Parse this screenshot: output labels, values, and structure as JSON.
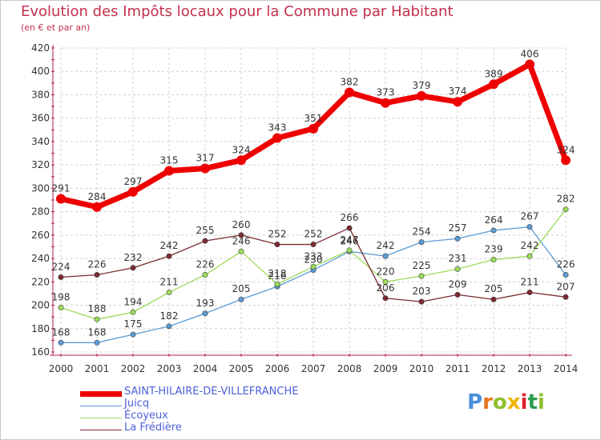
{
  "header": {
    "title": "Evolution des Impôts locaux pour la Commune par Habitant",
    "subtitle": "(en € et par an)"
  },
  "logo": {
    "letters": [
      "P",
      "r",
      "o",
      "x",
      "i",
      "t",
      "i"
    ],
    "colors": [
      "#4a90d9",
      "#e8741d",
      "#8fbf2e",
      "#f2b200",
      "#d9242a",
      "#2b9b4c",
      "#8fbf2e"
    ]
  },
  "colors": {
    "title": "#c2304c",
    "axis": "#b02040",
    "grid": "#d0d0d0",
    "legend_text": "#4b5fd9"
  },
  "chart_data": {
    "type": "line",
    "title": "Evolution des Impôts locaux pour la Commune par Habitant",
    "subtitle": "(en € et par an)",
    "xlabel": "",
    "ylabel": "",
    "x": [
      2000,
      2001,
      2002,
      2003,
      2004,
      2005,
      2006,
      2007,
      2008,
      2009,
      2010,
      2011,
      2012,
      2013,
      2014
    ],
    "ylim": [
      160,
      420
    ],
    "yticks": [
      160,
      180,
      200,
      220,
      240,
      260,
      280,
      300,
      320,
      340,
      360,
      380,
      400,
      420
    ],
    "grid": true,
    "legend_position": "bottom",
    "series": [
      {
        "name": "SAINT-HILAIRE-DE-VILLEFRANCHE",
        "color": "#ee0000",
        "thick": true,
        "values": [
          291,
          284,
          297,
          315,
          317,
          324,
          343,
          351,
          382,
          373,
          379,
          374,
          389,
          406,
          324
        ]
      },
      {
        "name": "Juicq",
        "color": "#5b9bd5",
        "thick": false,
        "values": [
          168,
          168,
          175,
          182,
          193,
          205,
          216,
          230,
          246,
          242,
          254,
          257,
          264,
          267,
          226
        ]
      },
      {
        "name": "Écoyeux",
        "color": "#9bdb5a",
        "thick": false,
        "values": [
          198,
          188,
          194,
          211,
          226,
          246,
          218,
          233,
          247,
          220,
          225,
          231,
          239,
          242,
          282
        ]
      },
      {
        "name": "La Frédière",
        "color": "#7a2a30",
        "thick": false,
        "values": [
          224,
          226,
          232,
          242,
          255,
          260,
          252,
          252,
          266,
          206,
          203,
          209,
          205,
          211,
          207
        ]
      }
    ]
  }
}
